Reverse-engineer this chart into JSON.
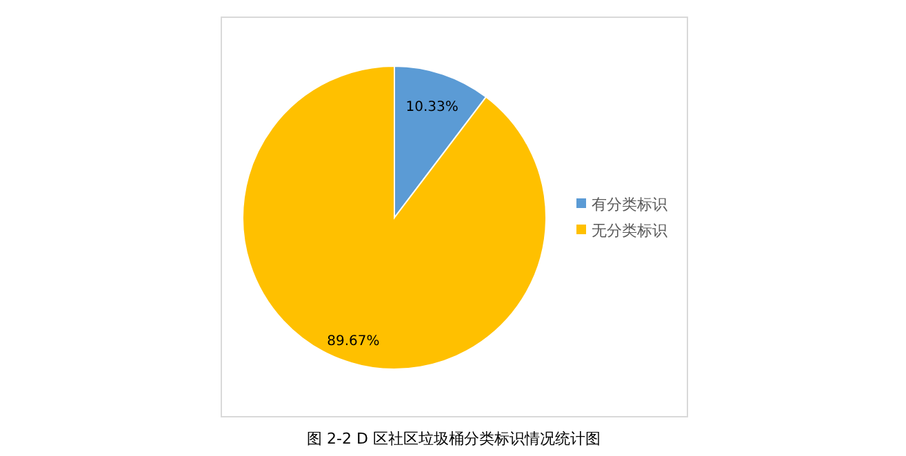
{
  "chart_data": {
    "type": "pie",
    "categories": [
      "有分类标识",
      "无分类标识"
    ],
    "values": [
      10.33,
      89.67
    ],
    "colors": [
      "#5b9bd5",
      "#ffc000"
    ],
    "value_labels": [
      "10.33%",
      "89.67%"
    ],
    "legend": "right",
    "annotations": [
      "图 2-2 D 区社区垃圾桶分类标识情况统计图"
    ]
  }
}
